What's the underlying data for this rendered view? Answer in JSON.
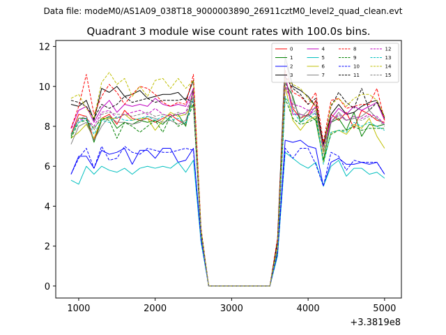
{
  "chart_data": {
    "type": "line",
    "suptitle": "Data file: modeM0/AS1A09_038T18_9000003890_26911cztM0_level2_quad_clean.evt",
    "title": "Quadrant 3 module wise count rates with 100.0s bins.",
    "xlabel": "",
    "ylabel": "",
    "x_offset_label": "+3.3819e8",
    "x_tick_labels": [
      "1000",
      "2000",
      "3000",
      "4000",
      "5000"
    ],
    "y_tick_labels": [
      "0",
      "2",
      "4",
      "6",
      "8",
      "10",
      "12"
    ],
    "xlim": [
      700,
      5220
    ],
    "ylim": [
      -0.6,
      12.3
    ],
    "x_ticks": [
      1000,
      2000,
      3000,
      4000,
      5000
    ],
    "y_ticks": [
      0,
      2,
      4,
      6,
      8,
      10,
      12
    ],
    "grid": false,
    "legend_position": "top-right",
    "x": [
      900,
      1000,
      1100,
      1200,
      1300,
      1400,
      1500,
      1600,
      1700,
      1800,
      1900,
      2000,
      2100,
      2200,
      2300,
      2400,
      2500,
      2600,
      2700,
      2800,
      2900,
      3000,
      3100,
      3200,
      3300,
      3400,
      3500,
      3600,
      3700,
      3800,
      3900,
      4000,
      4100,
      4200,
      4300,
      4400,
      4500,
      4600,
      4700,
      4800,
      4900,
      5000
    ],
    "series": [
      {
        "name": "0",
        "color": "#ff0000",
        "dash": false,
        "values": [
          7.6,
          8.6,
          8.5,
          7.3,
          8.4,
          8.6,
          8.1,
          8.8,
          8.4,
          8.3,
          8.4,
          8.2,
          8.4,
          8.6,
          8.3,
          8.1,
          9.8,
          2.6,
          0,
          0,
          0,
          0,
          0,
          0,
          0,
          0,
          0,
          2.0,
          10.5,
          8.9,
          8.4,
          8.6,
          9.3,
          6.7,
          8.6,
          8.3,
          8.7,
          7.9,
          8.8,
          8.6,
          8.3,
          8.2
        ]
      },
      {
        "name": "1",
        "color": "#008000",
        "dash": false,
        "values": [
          7.5,
          8.4,
          8.4,
          7.2,
          8.3,
          8.5,
          7.9,
          8.2,
          8.1,
          8.3,
          8.2,
          8.3,
          8.1,
          8.5,
          8.6,
          8.0,
          9.9,
          2.5,
          0,
          0,
          0,
          0,
          0,
          0,
          0,
          0,
          0,
          1.7,
          10.2,
          9.5,
          8.2,
          8.6,
          8.3,
          6.3,
          8.2,
          8.4,
          7.8,
          8.7,
          7.5,
          8.1,
          8.0,
          8.1
        ]
      },
      {
        "name": "2",
        "color": "#0000ff",
        "dash": false,
        "values": [
          5.6,
          6.5,
          6.5,
          5.9,
          6.8,
          6.6,
          6.7,
          6.9,
          6.1,
          6.8,
          6.8,
          6.4,
          6.9,
          6.9,
          6.2,
          6.3,
          6.9,
          2.3,
          0,
          0,
          0,
          0,
          0,
          0,
          0,
          0,
          0,
          1.6,
          7.3,
          7.2,
          7.3,
          7.0,
          6.9,
          5.0,
          6.2,
          6.4,
          6.1,
          6.1,
          6.2,
          6.1,
          6.2,
          5.6
        ]
      },
      {
        "name": "3",
        "color": "#000000",
        "dash": false,
        "values": [
          9.1,
          9.0,
          9.3,
          8.3,
          9.9,
          9.7,
          10.0,
          9.5,
          9.6,
          9.8,
          9.4,
          9.5,
          9.6,
          9.6,
          9.7,
          9.3,
          10.3,
          2.7,
          0,
          0,
          0,
          0,
          0,
          0,
          0,
          0,
          0,
          2.3,
          11.5,
          10.0,
          9.8,
          9.5,
          9.0,
          7.1,
          8.6,
          9.1,
          8.6,
          8.7,
          9.0,
          9.2,
          9.3,
          8.4
        ]
      },
      {
        "name": "4",
        "color": "#bf00bf",
        "dash": false,
        "values": [
          7.9,
          8.8,
          9.0,
          8.2,
          8.9,
          9.3,
          8.7,
          9.1,
          9.0,
          9.1,
          9.0,
          9.4,
          9.1,
          9.0,
          9.1,
          9.0,
          9.9,
          2.7,
          0,
          0,
          0,
          0,
          0,
          0,
          0,
          0,
          0,
          2.0,
          10.6,
          8.6,
          8.6,
          8.5,
          9.0,
          6.8,
          8.4,
          8.9,
          8.6,
          9.0,
          8.8,
          9.0,
          9.2,
          8.3
        ]
      },
      {
        "name": "5",
        "color": "#00bfbf",
        "dash": false,
        "values": [
          5.3,
          5.1,
          6.0,
          5.6,
          6.0,
          5.8,
          5.7,
          5.9,
          5.6,
          5.9,
          6.0,
          5.9,
          6.0,
          5.9,
          6.2,
          5.7,
          6.3,
          2.2,
          0,
          0,
          0,
          0,
          0,
          0,
          0,
          0,
          0,
          1.5,
          6.7,
          6.4,
          6.1,
          5.9,
          6.2,
          5.0,
          6.0,
          6.3,
          5.5,
          5.9,
          5.9,
          5.6,
          5.7,
          5.4
        ]
      },
      {
        "name": "6",
        "color": "#bfbf00",
        "dash": false,
        "values": [
          7.4,
          7.7,
          8.1,
          7.4,
          8.4,
          8.4,
          8.4,
          8.6,
          8.3,
          8.4,
          8.4,
          7.8,
          8.3,
          8.7,
          8.5,
          8.6,
          9.1,
          2.6,
          0,
          0,
          0,
          0,
          0,
          0,
          0,
          0,
          0,
          1.8,
          10.0,
          8.3,
          7.8,
          8.3,
          8.5,
          6.2,
          7.7,
          7.8,
          7.6,
          8.1,
          7.9,
          8.4,
          7.5,
          6.9
        ]
      },
      {
        "name": "7",
        "color": "#808080",
        "dash": false,
        "values": [
          7.1,
          8.0,
          8.2,
          7.3,
          8.0,
          8.5,
          8.2,
          8.2,
          8.1,
          8.2,
          8.5,
          8.4,
          8.2,
          8.3,
          8.1,
          8.3,
          9.4,
          2.6,
          0,
          0,
          0,
          0,
          0,
          0,
          0,
          0,
          0,
          1.9,
          11.6,
          9.3,
          8.4,
          8.8,
          8.9,
          6.8,
          8.2,
          8.7,
          8.3,
          8.4,
          8.5,
          8.8,
          8.4,
          8.1
        ]
      },
      {
        "name": "8",
        "color": "#ff0000",
        "dash": true,
        "values": [
          7.9,
          9.0,
          10.6,
          8.6,
          9.5,
          10.1,
          9.7,
          9.1,
          9.6,
          10.0,
          9.9,
          9.6,
          9.2,
          9.0,
          9.2,
          9.1,
          10.6,
          2.9,
          0,
          0,
          0,
          0,
          0,
          0,
          0,
          0,
          0,
          2.4,
          10.8,
          9.7,
          9.5,
          9.1,
          9.7,
          7.2,
          9.3,
          9.4,
          8.9,
          9.0,
          9.1,
          9.1,
          9.9,
          8.3
        ]
      },
      {
        "name": "9",
        "color": "#008000",
        "dash": true,
        "values": [
          7.4,
          8.2,
          8.3,
          7.9,
          8.4,
          8.3,
          7.4,
          8.2,
          8.0,
          7.7,
          8.0,
          8.3,
          7.7,
          8.5,
          8.0,
          8.2,
          9.1,
          2.5,
          0,
          0,
          0,
          0,
          0,
          0,
          0,
          0,
          0,
          1.7,
          9.4,
          8.4,
          8.1,
          8.2,
          8.4,
          6.3,
          7.6,
          7.8,
          7.8,
          8.0,
          7.8,
          7.9,
          7.9,
          7.9
        ]
      },
      {
        "name": "10",
        "color": "#0000ff",
        "dash": true,
        "values": [
          5.6,
          6.4,
          6.9,
          5.9,
          7.0,
          6.3,
          6.4,
          7.0,
          6.7,
          6.6,
          6.9,
          6.8,
          6.7,
          6.7,
          6.8,
          6.9,
          6.8,
          2.3,
          0,
          0,
          0,
          0,
          0,
          0,
          0,
          0,
          0,
          1.6,
          6.9,
          6.4,
          6.9,
          6.9,
          6.1,
          5.0,
          6.7,
          6.5,
          5.8,
          6.3,
          6.2,
          6.2,
          6.2,
          5.6
        ]
      },
      {
        "name": "11",
        "color": "#000000",
        "dash": true,
        "values": [
          9.3,
          9.2,
          9.0,
          8.4,
          9.1,
          8.9,
          9.1,
          9.5,
          9.2,
          9.3,
          9.4,
          9.2,
          9.3,
          9.3,
          9.3,
          9.4,
          9.2,
          2.8,
          0,
          0,
          0,
          0,
          0,
          0,
          0,
          0,
          0,
          2.2,
          10.5,
          9.9,
          9.6,
          9.1,
          9.4,
          7.0,
          9.0,
          9.7,
          9.2,
          8.9,
          9.9,
          8.8,
          9.2,
          8.5
        ]
      },
      {
        "name": "12",
        "color": "#bf00bf",
        "dash": true,
        "values": [
          7.9,
          8.3,
          8.4,
          8.0,
          8.7,
          8.8,
          8.4,
          8.6,
          8.7,
          8.8,
          8.6,
          8.9,
          8.6,
          8.5,
          8.6,
          8.7,
          9.7,
          2.7,
          0,
          0,
          0,
          0,
          0,
          0,
          0,
          0,
          0,
          2.0,
          10.0,
          9.1,
          9.0,
          8.8,
          8.6,
          7.0,
          8.2,
          8.6,
          8.3,
          8.5,
          8.4,
          8.6,
          8.5,
          8.1
        ]
      },
      {
        "name": "13",
        "color": "#00bfbf",
        "dash": true,
        "values": [
          7.6,
          8.2,
          8.4,
          7.6,
          8.3,
          8.2,
          8.5,
          8.3,
          8.3,
          8.4,
          8.5,
          8.3,
          8.5,
          8.3,
          8.4,
          8.1,
          9.4,
          2.6,
          0,
          0,
          0,
          0,
          0,
          0,
          0,
          0,
          0,
          1.8,
          9.5,
          8.8,
          8.2,
          8.4,
          8.7,
          6.1,
          7.7,
          7.8,
          7.7,
          8.2,
          8.0,
          8.2,
          8.0,
          7.8
        ]
      },
      {
        "name": "14",
        "color": "#bfbf00",
        "dash": true,
        "values": [
          9.4,
          9.6,
          8.9,
          8.4,
          10.2,
          10.7,
          10.1,
          10.4,
          9.5,
          10.0,
          9.5,
          10.3,
          10.4,
          9.9,
          10.4,
          9.9,
          10.3,
          2.8,
          0,
          0,
          0,
          0,
          0,
          0,
          0,
          0,
          0,
          2.1,
          10.4,
          10.1,
          9.9,
          9.4,
          9.0,
          6.7,
          9.1,
          9.4,
          9.0,
          9.4,
          9.6,
          9.6,
          9.3,
          8.5
        ]
      },
      {
        "name": "15",
        "color": "#808080",
        "dash": true,
        "values": [
          7.6,
          8.4,
          8.5,
          7.8,
          8.6,
          8.7,
          8.6,
          8.6,
          8.5,
          8.6,
          8.7,
          8.5,
          8.6,
          8.5,
          8.7,
          8.6,
          9.5,
          2.6,
          0,
          0,
          0,
          0,
          0,
          0,
          0,
          0,
          0,
          1.9,
          10.2,
          9.0,
          8.6,
          8.5,
          8.8,
          6.6,
          8.3,
          8.5,
          8.3,
          8.4,
          8.3,
          8.5,
          8.4,
          8.0
        ]
      }
    ]
  }
}
